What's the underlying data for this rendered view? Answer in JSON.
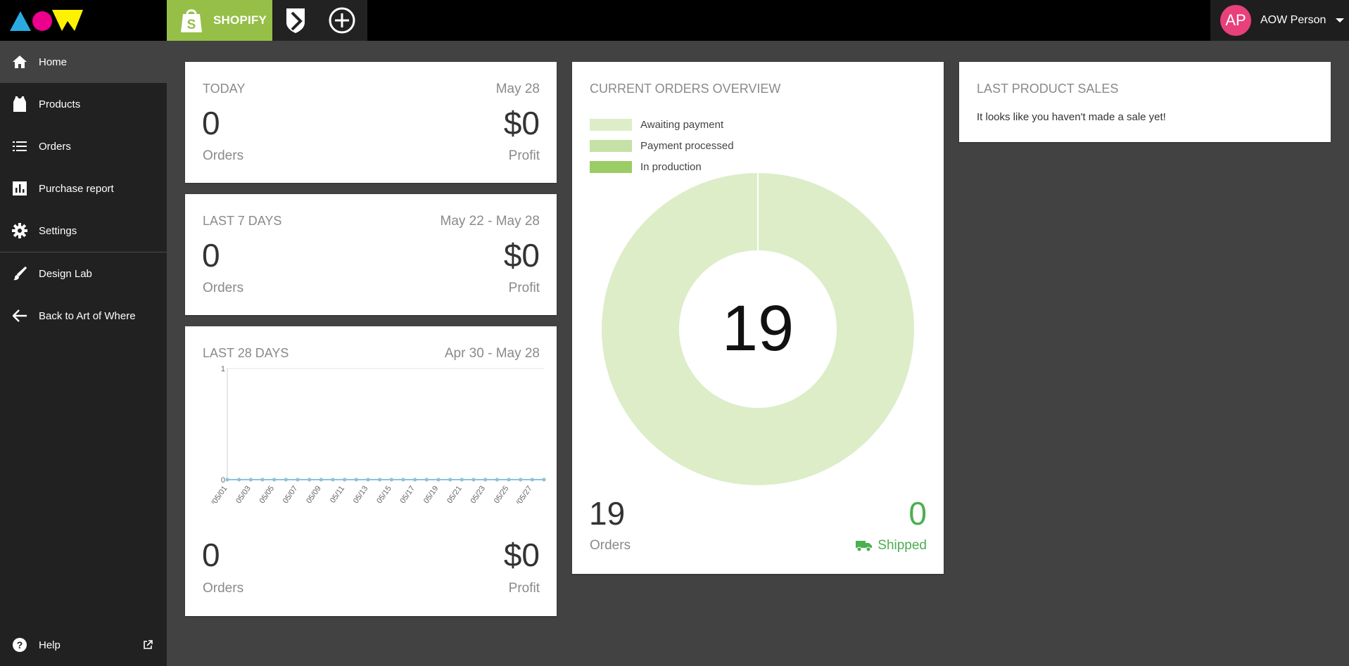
{
  "header": {
    "shopify_label": "SHOPIFY",
    "user_initials": "AP",
    "user_name": "AOW Person"
  },
  "colors": {
    "shopify_green": "#95bf47",
    "avatar_pink": "#e8407a",
    "shipped_green": "#4caf50",
    "awaiting_payment": "#dcedc8",
    "payment_processed": "#c5e1a5",
    "in_production": "#9ccc65"
  },
  "sidebar": {
    "items": [
      {
        "label": "Home",
        "icon": "home-icon"
      },
      {
        "label": "Products",
        "icon": "tank-top-icon"
      },
      {
        "label": "Orders",
        "icon": "list-icon"
      },
      {
        "label": "Purchase report",
        "icon": "bar-chart-icon"
      },
      {
        "label": "Settings",
        "icon": "gear-icon"
      },
      {
        "label": "Design Lab",
        "icon": "brush-icon"
      },
      {
        "label": "Back to Art of Where",
        "icon": "arrow-left-icon"
      }
    ],
    "help_label": "Help"
  },
  "today": {
    "title": "TODAY",
    "date": "May 28",
    "orders": "0",
    "orders_label": "Orders",
    "profit": "$0",
    "profit_label": "Profit"
  },
  "last7": {
    "title": "LAST 7 DAYS",
    "date": "May 22 - May 28",
    "orders": "0",
    "orders_label": "Orders",
    "profit": "$0",
    "profit_label": "Profit"
  },
  "last28": {
    "title": "LAST 28 DAYS",
    "date": "Apr 30 - May 28",
    "orders": "0",
    "orders_label": "Orders",
    "profit": "$0",
    "profit_label": "Profit"
  },
  "overview": {
    "title": "CURRENT ORDERS OVERVIEW",
    "legend": [
      "Awaiting payment",
      "Payment processed",
      "In production"
    ],
    "center_value": "19",
    "orders": "19",
    "orders_label": "Orders",
    "shipped": "0",
    "shipped_label": "Shipped"
  },
  "last_sales": {
    "title": "LAST PRODUCT SALES",
    "message": "It looks like you haven't made a sale yet!"
  },
  "chart_data": [
    {
      "type": "line",
      "x_ticks": [
        "2018/05/01",
        "05/03",
        "05/05",
        "05/07",
        "05/09",
        "05/11",
        "05/13",
        "05/15",
        "05/17",
        "05/19",
        "05/21",
        "05/23",
        "05/25",
        "2018/05/27"
      ],
      "points": 28,
      "values": [
        0,
        0,
        0,
        0,
        0,
        0,
        0,
        0,
        0,
        0,
        0,
        0,
        0,
        0,
        0,
        0,
        0,
        0,
        0,
        0,
        0,
        0,
        0,
        0,
        0,
        0,
        0,
        0
      ],
      "ylim": [
        0,
        1
      ],
      "y_ticks": [
        "0",
        "1"
      ]
    },
    {
      "type": "pie",
      "donut": true,
      "labels": [
        "Awaiting payment",
        "Payment processed",
        "In production"
      ],
      "values": [
        19,
        0,
        0
      ]
    }
  ]
}
